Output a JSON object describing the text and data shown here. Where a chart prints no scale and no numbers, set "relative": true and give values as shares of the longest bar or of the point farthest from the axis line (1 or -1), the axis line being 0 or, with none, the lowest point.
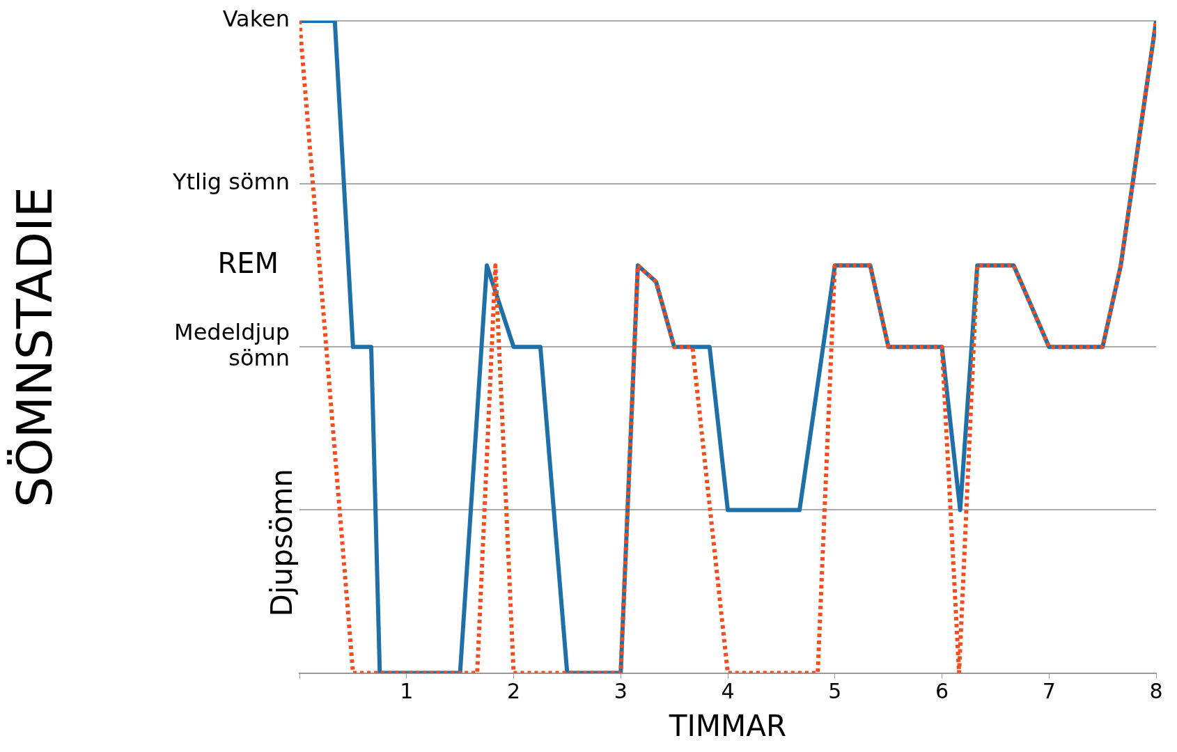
{
  "chart_data": {
    "type": "line",
    "xlabel": "TIMMAR",
    "ylabel": "SÖMNSTADIE",
    "xlim": [
      0,
      8
    ],
    "xticks": [
      {
        "value": 0,
        "label": null
      },
      1,
      2,
      3,
      4,
      5,
      6,
      7,
      8
    ],
    "relative": true,
    "grid": "y",
    "legend": false,
    "marker": "none",
    "annotations": [
      "Vaken",
      "Ytlig sömn",
      "REM",
      "Medeldjup sömn",
      "Djupsömn"
    ],
    "series": [
      {
        "color": "#1f6fa8",
        "line_style": "solid",
        "x": [
          0,
          0.33,
          0.5,
          0.67,
          0.75,
          1.5,
          1.75,
          2.0,
          2.25,
          2.5,
          3.0,
          3.16,
          3.33,
          3.5,
          3.83,
          4.0,
          4.67,
          5.0,
          5.33,
          5.5,
          6.0,
          6.17,
          6.33,
          6.67,
          7.0,
          7.5,
          7.67,
          8
        ],
        "values": [
          1,
          1,
          0.5,
          0.5,
          0,
          0,
          0.625,
          0.5,
          0.5,
          0,
          0,
          0.625,
          0.6,
          0.5,
          0.5,
          0.25,
          0.25,
          0.625,
          0.625,
          0.5,
          0.5,
          0.25,
          0.625,
          0.625,
          0.5,
          0.5,
          0.625,
          1
        ]
      },
      {
        "color": "#f04e1e",
        "line_style": "dotted",
        "x": [
          0,
          0.5,
          1.66,
          1.83,
          2.0,
          3.0,
          3.16,
          3.33,
          3.5,
          3.67,
          4.0,
          4.84,
          5.0,
          5.33,
          5.5,
          6.0,
          6.16,
          6.33,
          6.67,
          7.0,
          7.5,
          7.67,
          8
        ],
        "values": [
          1,
          0,
          0,
          0.625,
          0,
          0,
          0.625,
          0.6,
          0.5,
          0.5,
          0,
          0,
          0.625,
          0.625,
          0.5,
          0.5,
          0,
          0.625,
          0.625,
          0.5,
          0.5,
          0.625,
          1
        ]
      }
    ]
  }
}
